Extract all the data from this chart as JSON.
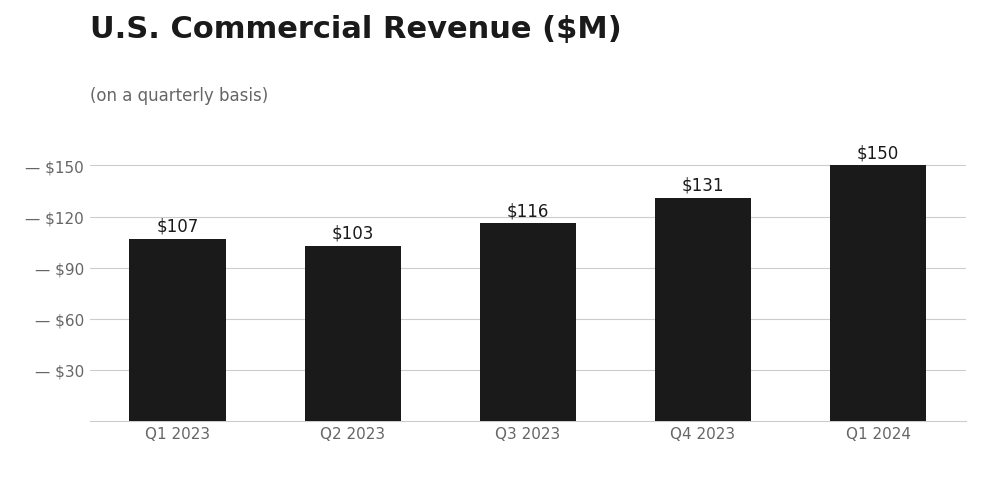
{
  "title": "U.S. Commercial Revenue ($M)",
  "subtitle": "(on a quarterly basis)",
  "categories": [
    "Q1 2023",
    "Q2 2023",
    "Q3 2023",
    "Q4 2023",
    "Q1 2024"
  ],
  "values": [
    107,
    103,
    116,
    131,
    150
  ],
  "bar_color": "#1a1a1a",
  "background_color": "#ffffff",
  "yticks": [
    30,
    60,
    90,
    120,
    150
  ],
  "ytick_labels": [
    "— $30",
    "— $60",
    "— $90",
    "— $120",
    "— $150"
  ],
  "ylim": [
    0,
    168
  ],
  "title_fontsize": 22,
  "subtitle_fontsize": 12,
  "bar_label_fontsize": 12,
  "tick_fontsize": 11,
  "xtick_fontsize": 11,
  "grid_color": "#cccccc",
  "tick_label_color": "#666666",
  "text_color": "#1a1a1a"
}
